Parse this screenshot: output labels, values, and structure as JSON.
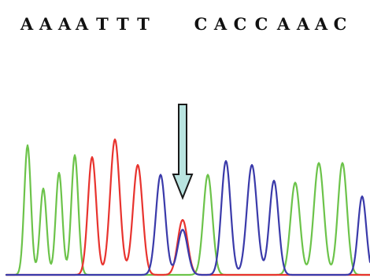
{
  "chart_data": {
    "type": "line",
    "title": "",
    "xlabel": "",
    "ylabel": "",
    "sequence_groups": [
      {
        "label": "AAAATTT",
        "bases": [
          "A",
          "A",
          "A",
          "A",
          "T",
          "T",
          "T"
        ]
      },
      {
        "label": "CACCAAAC",
        "bases": [
          "C",
          "A",
          "C",
          "C",
          "A",
          "A",
          "A",
          "C"
        ]
      }
    ],
    "grid": false,
    "legend": "none",
    "annotation": {
      "type": "arrow",
      "points_to_peak_index": 8
    },
    "ylim": [
      0,
      100
    ],
    "channels": [
      {
        "base": "A",
        "color": "#6cc34a",
        "peaks": [
          {
            "index": 0,
            "height": 66,
            "width": 0.5
          },
          {
            "index": 1,
            "height": 44,
            "width": 0.5
          },
          {
            "index": 2,
            "height": 52,
            "width": 0.5
          },
          {
            "index": 3,
            "height": 61,
            "width": 0.5
          },
          {
            "index": 9,
            "height": 51,
            "width": 0.5
          },
          {
            "index": 13,
            "height": 47,
            "width": 0.5
          },
          {
            "index": 14,
            "height": 57,
            "width": 0.5
          },
          {
            "index": 15,
            "height": 57,
            "width": 0.5
          }
        ]
      },
      {
        "base": "T",
        "color": "#e8332e",
        "peaks": [
          {
            "index": 4,
            "height": 60,
            "width": 0.5
          },
          {
            "index": 5,
            "height": 69,
            "width": 0.5
          },
          {
            "index": 6,
            "height": 56,
            "width": 0.5
          },
          {
            "index": 8,
            "height": 28,
            "width": 0.5
          }
        ]
      },
      {
        "base": "C",
        "color": "#3a3aaa",
        "peaks": [
          {
            "index": 7,
            "height": 51,
            "width": 0.5
          },
          {
            "index": 8,
            "height": 23,
            "width": 0.5
          },
          {
            "index": 10,
            "height": 58,
            "width": 0.5
          },
          {
            "index": 11,
            "height": 56,
            "width": 0.5
          },
          {
            "index": 12,
            "height": 48,
            "width": 0.5
          },
          {
            "index": 16,
            "height": 40,
            "width": 0.5
          }
        ]
      }
    ]
  }
}
